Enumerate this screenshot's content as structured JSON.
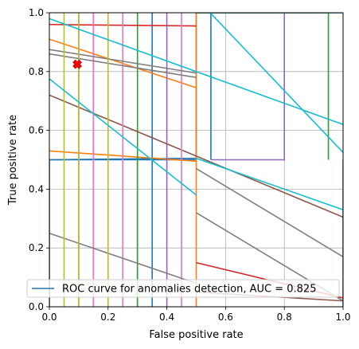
{
  "chart_data": {
    "type": "line",
    "title": "",
    "xlabel": "False positive rate",
    "ylabel": "True positive rate",
    "xlim": [
      0,
      1
    ],
    "ylim": [
      0,
      1
    ],
    "xticks": [
      "0.0",
      "0.2",
      "0.4",
      "0.6",
      "0.8",
      "1.0"
    ],
    "yticks": [
      "0.0",
      "0.2",
      "0.4",
      "0.6",
      "0.8",
      "1.0"
    ],
    "grid": true,
    "legend": {
      "position": "lower-left",
      "entries": [
        {
          "label": "ROC curve for anomalies detection, AUC = 0.825",
          "color": "#1f77b4"
        }
      ]
    },
    "marker": {
      "symbol": "X",
      "color": "#ff0000",
      "x": 0.095,
      "y": 0.825
    },
    "series": [
      {
        "color": "#1f77b4",
        "points": [
          [
            0,
            0
          ],
          [
            0,
            0.5
          ],
          [
            0.5,
            0.5
          ],
          [
            0.5,
            1
          ],
          [
            1,
            1
          ]
        ]
      },
      {
        "color": "#1f77b4",
        "points": [
          [
            0.3,
            0
          ],
          [
            0.3,
            0.5
          ]
        ]
      },
      {
        "color": "#1f77b4",
        "points": [
          [
            0.35,
            0
          ],
          [
            0.35,
            1
          ]
        ]
      },
      {
        "color": "#1f77b4",
        "points": [
          [
            0.55,
            0.5
          ],
          [
            0.55,
            1
          ]
        ]
      },
      {
        "color": "#1f77b4",
        "points": [
          [
            0,
            0.5
          ],
          [
            0.5,
            0.505
          ]
        ]
      },
      {
        "color": "#ff7f0e",
        "points": [
          [
            0,
            0.91
          ],
          [
            0.5,
            0.745
          ]
        ]
      },
      {
        "color": "#ff7f0e",
        "points": [
          [
            0,
            0.53
          ],
          [
            0.5,
            0.495
          ]
        ]
      },
      {
        "color": "#ff7f0e",
        "points": [
          [
            0.5,
            0
          ],
          [
            0.5,
            1
          ]
        ]
      },
      {
        "color": "#2ca02c",
        "points": [
          [
            0.5,
            1
          ],
          [
            0.95,
            1
          ],
          [
            0.95,
            0.5
          ]
        ]
      },
      {
        "color": "#2ca02c",
        "points": [
          [
            0.3,
            0
          ],
          [
            0.3,
            1
          ]
        ]
      },
      {
        "color": "#d62728",
        "points": [
          [
            0,
            0.96
          ],
          [
            0.5,
            0.955
          ]
        ]
      },
      {
        "color": "#d62728",
        "points": [
          [
            0.5,
            0.15
          ],
          [
            1,
            0.03
          ]
        ]
      },
      {
        "color": "#9467bd",
        "points": [
          [
            0.15,
            0
          ],
          [
            0.15,
            1
          ]
        ]
      },
      {
        "color": "#9467bd",
        "points": [
          [
            0.4,
            0
          ],
          [
            0.4,
            1
          ]
        ]
      },
      {
        "color": "#9467bd",
        "points": [
          [
            0.55,
            0.5
          ],
          [
            0.8,
            0.5
          ],
          [
            0.8,
            1
          ]
        ]
      },
      {
        "color": "#9467bd",
        "points": [
          [
            0.1,
            0
          ],
          [
            0.1,
            1
          ]
        ]
      },
      {
        "color": "#8c564b",
        "points": [
          [
            0,
            0.72
          ],
          [
            1,
            0.305
          ]
        ]
      },
      {
        "color": "#8c564b",
        "points": [
          [
            0.5,
            0.05
          ],
          [
            1,
            0.02
          ]
        ]
      },
      {
        "color": "#e377c2",
        "points": [
          [
            0.25,
            0
          ],
          [
            0.25,
            1
          ]
        ]
      },
      {
        "color": "#e377c2",
        "points": [
          [
            0.15,
            0
          ],
          [
            0.15,
            1
          ]
        ]
      },
      {
        "color": "#e377c2",
        "points": [
          [
            0.45,
            0
          ],
          [
            0.45,
            1
          ]
        ]
      },
      {
        "color": "#7f7f7f",
        "points": [
          [
            0,
            0.875
          ],
          [
            0.5,
            0.795
          ]
        ]
      },
      {
        "color": "#7f7f7f",
        "points": [
          [
            0,
            0.86
          ],
          [
            0.5,
            0.78
          ]
        ]
      },
      {
        "color": "#7f7f7f",
        "points": [
          [
            0,
            0.25
          ],
          [
            0.5,
            0.08
          ]
        ]
      },
      {
        "color": "#7f7f7f",
        "points": [
          [
            0.5,
            0.47
          ],
          [
            1,
            0.17
          ]
        ]
      },
      {
        "color": "#7f7f7f",
        "points": [
          [
            0.5,
            0.32
          ],
          [
            1,
            0.02
          ]
        ]
      },
      {
        "color": "#bcbd22",
        "points": [
          [
            0.05,
            0
          ],
          [
            0.05,
            1
          ]
        ]
      },
      {
        "color": "#bcbd22",
        "points": [
          [
            0.2,
            0
          ],
          [
            0.2,
            1
          ]
        ]
      },
      {
        "color": "#bcbd22",
        "points": [
          [
            0.1,
            0
          ],
          [
            0.1,
            1
          ]
        ]
      },
      {
        "color": "#17becf",
        "points": [
          [
            0,
            0.98
          ],
          [
            1,
            0.62
          ]
        ]
      },
      {
        "color": "#17becf",
        "points": [
          [
            0,
            0.775
          ],
          [
            0.5,
            0.38
          ]
        ]
      },
      {
        "color": "#17becf",
        "points": [
          [
            0.5,
            1.05
          ],
          [
            1,
            0.525
          ]
        ]
      },
      {
        "color": "#17becf",
        "points": [
          [
            0.5,
            0.505
          ],
          [
            1,
            0.33
          ]
        ]
      },
      {
        "color": "#1f77b4",
        "points": [
          [
            1,
            0
          ],
          [
            1,
            0.5
          ]
        ]
      }
    ]
  }
}
